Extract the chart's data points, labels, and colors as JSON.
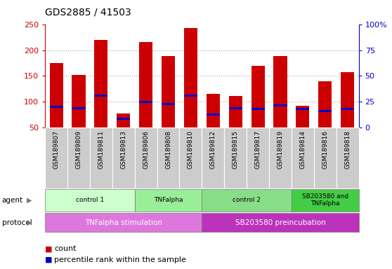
{
  "title": "GDS2885 / 41503",
  "samples": [
    "GSM189807",
    "GSM189809",
    "GSM189811",
    "GSM189813",
    "GSM189806",
    "GSM189808",
    "GSM189810",
    "GSM189812",
    "GSM189815",
    "GSM189817",
    "GSM189819",
    "GSM189814",
    "GSM189816",
    "GSM189818"
  ],
  "counts": [
    175,
    152,
    220,
    78,
    215,
    188,
    242,
    116,
    112,
    170,
    188,
    92,
    140,
    158
  ],
  "pct_left_values": [
    90,
    88,
    112,
    68,
    100,
    96,
    112,
    76,
    88,
    87,
    93,
    86,
    82,
    86
  ],
  "bar_color": "#cc0000",
  "pct_color": "#0000cc",
  "ylim_left": [
    50,
    250
  ],
  "ylim_right": [
    0,
    100
  ],
  "dotted_lines": [
    100,
    150,
    200
  ],
  "dotted_line_color": "#aaaaaa",
  "bg_color": "#ffffff",
  "sample_bg": "#cccccc",
  "agent_groups": [
    {
      "label": "control 1",
      "start": 0,
      "end": 4,
      "color": "#ccffcc"
    },
    {
      "label": "TNFalpha",
      "start": 4,
      "end": 7,
      "color": "#99ee99"
    },
    {
      "label": "control 2",
      "start": 7,
      "end": 11,
      "color": "#88dd88"
    },
    {
      "label": "SB203580 and\nTNFalpha",
      "start": 11,
      "end": 14,
      "color": "#44cc44"
    }
  ],
  "protocol_groups": [
    {
      "label": "TNFalpha stimulation",
      "start": 0,
      "end": 7,
      "color": "#dd77dd"
    },
    {
      "label": "SB203580 preincubation",
      "start": 7,
      "end": 14,
      "color": "#bb33bb"
    }
  ],
  "left_yticks": [
    50,
    100,
    150,
    200,
    250
  ],
  "right_yticks": [
    0,
    25,
    50,
    75,
    100
  ],
  "left_tick_color": "#cc0000",
  "right_tick_color": "#0000cc"
}
